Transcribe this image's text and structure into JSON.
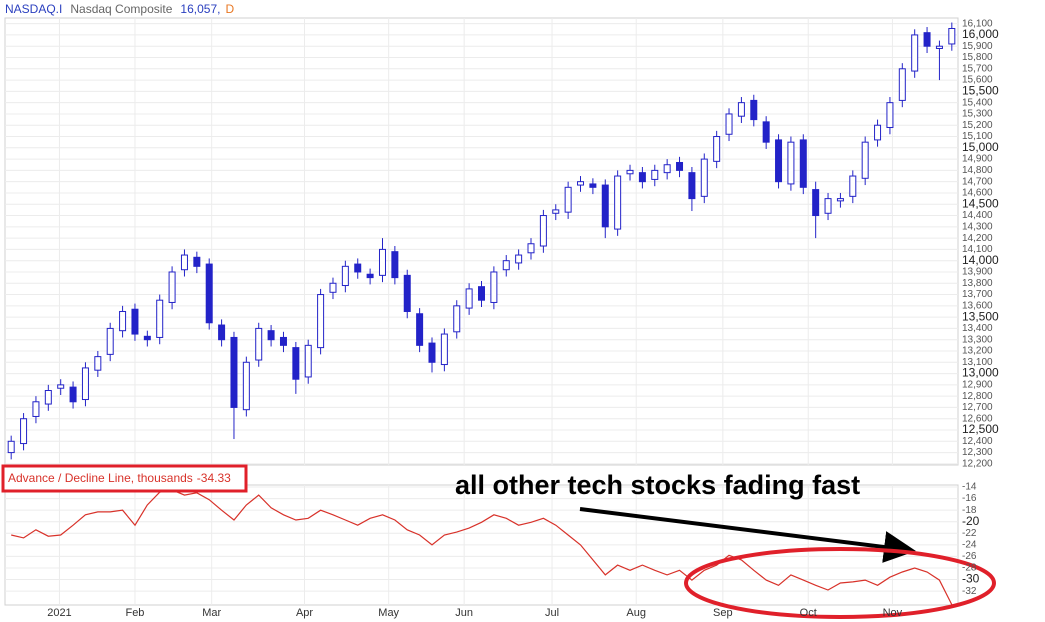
{
  "chart_data": [
    {
      "type": "candlestick",
      "title": "NASDAQ.I",
      "subtitle": "Nasdaq Composite",
      "last_label": "16,057,",
      "period": "D",
      "color": "#2323c8",
      "open": [
        12300,
        12380,
        12620,
        12730,
        12870,
        12880,
        12770,
        13030,
        13170,
        13380,
        13570,
        13330,
        13320,
        13630,
        13920,
        14030,
        13970,
        13430,
        13320,
        12680,
        13120,
        13380,
        13320,
        13230,
        12970,
        13230,
        13720,
        13780,
        13970,
        13880,
        13870,
        14080,
        13870,
        13530,
        13270,
        13080,
        13370,
        13580,
        13770,
        13630,
        13920,
        13980,
        14070,
        14130,
        14420,
        14430,
        14670,
        14680,
        14670,
        14280,
        14770,
        14780,
        14720,
        14780,
        14870,
        14780,
        14570,
        14880,
        15120,
        15280,
        15420,
        15230,
        15070,
        14680,
        15070,
        14630,
        14420,
        14530,
        14570,
        14730,
        15070,
        15180,
        15420,
        15680,
        16020,
        15880,
        15920
      ],
      "high": [
        12450,
        12650,
        12800,
        12900,
        12950,
        12930,
        13100,
        13200,
        13450,
        13600,
        13620,
        13380,
        13700,
        13950,
        14100,
        14080,
        14020,
        13480,
        13370,
        13150,
        13450,
        13430,
        13370,
        13280,
        13300,
        13750,
        13850,
        14000,
        14020,
        13930,
        14200,
        14130,
        13920,
        13580,
        13320,
        13400,
        13650,
        13800,
        13820,
        13950,
        14050,
        14100,
        14200,
        14450,
        14500,
        14700,
        14750,
        14730,
        14720,
        14800,
        14850,
        14830,
        14850,
        14900,
        14920,
        14830,
        14950,
        15150,
        15350,
        15450,
        15470,
        15280,
        15120,
        15100,
        15120,
        14700,
        14600,
        14600,
        14800,
        15100,
        15250,
        15450,
        15750,
        16050,
        16070,
        15950,
        16110
      ],
      "low": [
        12240,
        12320,
        12560,
        12670,
        12810,
        12690,
        12710,
        12970,
        13110,
        13320,
        13290,
        13240,
        13260,
        13570,
        13860,
        13890,
        13390,
        13240,
        12420,
        12620,
        13060,
        13240,
        13190,
        12820,
        12910,
        13170,
        13660,
        13720,
        13840,
        13790,
        13810,
        13790,
        13490,
        13190,
        13010,
        13020,
        13310,
        13520,
        13590,
        13570,
        13860,
        13920,
        14010,
        14070,
        14360,
        14370,
        14610,
        14590,
        14200,
        14220,
        14710,
        14640,
        14660,
        14720,
        14740,
        14440,
        14510,
        14820,
        15060,
        15220,
        15190,
        14990,
        14640,
        14620,
        14590,
        14200,
        14360,
        14470,
        14510,
        14670,
        15010,
        15120,
        15360,
        15620,
        15840,
        15600,
        15860
      ],
      "close": [
        12400,
        12600,
        12750,
        12850,
        12900,
        12750,
        13050,
        13150,
        13400,
        13550,
        13350,
        13300,
        13650,
        13900,
        14050,
        13950,
        13450,
        13300,
        12700,
        13100,
        13400,
        13300,
        13250,
        12950,
        13250,
        13700,
        13800,
        13950,
        13900,
        13850,
        14100,
        13850,
        13550,
        13250,
        13100,
        13350,
        13600,
        13750,
        13650,
        13900,
        14000,
        14050,
        14150,
        14400,
        14450,
        14650,
        14700,
        14650,
        14300,
        14750,
        14800,
        14700,
        14800,
        14850,
        14800,
        14550,
        14900,
        15100,
        15300,
        15400,
        15250,
        15050,
        14700,
        15050,
        14650,
        14400,
        14550,
        14550,
        14750,
        15050,
        15200,
        15400,
        15700,
        16000,
        15900,
        15900,
        16057
      ],
      "ylim": [
        12190,
        16150
      ],
      "yticks": [
        {
          "value": 12200,
          "label": "12,200"
        },
        {
          "value": 12300,
          "label": "12,300"
        },
        {
          "value": 12400,
          "label": "12,400"
        },
        {
          "value": 12500,
          "label": "12,500"
        },
        {
          "value": 12600,
          "label": "12,600"
        },
        {
          "value": 12700,
          "label": "12,700"
        },
        {
          "value": 12800,
          "label": "12,800"
        },
        {
          "value": 12900,
          "label": "12,900"
        },
        {
          "value": 13000,
          "label": "13,000"
        },
        {
          "value": 13100,
          "label": "13,100"
        },
        {
          "value": 13200,
          "label": "13,200"
        },
        {
          "value": 13300,
          "label": "13,300"
        },
        {
          "value": 13400,
          "label": "13,400"
        },
        {
          "value": 13500,
          "label": "13,500"
        },
        {
          "value": 13600,
          "label": "13,600"
        },
        {
          "value": 13700,
          "label": "13,700"
        },
        {
          "value": 13800,
          "label": "13,800"
        },
        {
          "value": 13900,
          "label": "13,900"
        },
        {
          "value": 14000,
          "label": "14,000"
        },
        {
          "value": 14100,
          "label": "14,100"
        },
        {
          "value": 14200,
          "label": "14,200"
        },
        {
          "value": 14300,
          "label": "14,300"
        },
        {
          "value": 14400,
          "label": "14,400"
        },
        {
          "value": 14500,
          "label": "14,500"
        },
        {
          "value": 14600,
          "label": "14,600"
        },
        {
          "value": 14700,
          "label": "14,700"
        },
        {
          "value": 14800,
          "label": "14,800"
        },
        {
          "value": 14900,
          "label": "14,900"
        },
        {
          "value": 15000,
          "label": "15,000"
        },
        {
          "value": 15100,
          "label": "15,100"
        },
        {
          "value": 15200,
          "label": "15,200"
        },
        {
          "value": 15300,
          "label": "15,300"
        },
        {
          "value": 15400,
          "label": "15,400"
        },
        {
          "value": 15500,
          "label": "15,500"
        },
        {
          "value": 15600,
          "label": "15,600"
        },
        {
          "value": 15700,
          "label": "15,700"
        },
        {
          "value": 15800,
          "label": "15,800"
        },
        {
          "value": 15900,
          "label": "15,900"
        },
        {
          "value": 16000,
          "label": "16,000"
        },
        {
          "value": 16100,
          "label": "16,100"
        }
      ],
      "xlim": [
        0,
        77
      ],
      "xticks": [
        {
          "value": 4.4,
          "label": "2021"
        },
        {
          "value": 10.5,
          "label": "Feb"
        },
        {
          "value": 16.7,
          "label": "Mar"
        },
        {
          "value": 24.2,
          "label": "Apr"
        },
        {
          "value": 31.0,
          "label": "May"
        },
        {
          "value": 37.1,
          "label": "Jun"
        },
        {
          "value": 44.2,
          "label": "Jul"
        },
        {
          "value": 51.0,
          "label": "Aug"
        },
        {
          "value": 58.0,
          "label": "Sep"
        },
        {
          "value": 64.9,
          "label": "Oct"
        },
        {
          "value": 71.7,
          "label": "Nov"
        }
      ],
      "grid": true
    },
    {
      "type": "line",
      "series": [
        {
          "name": "Advance / Decline Line, thousands",
          "color": "#d8322a",
          "values": [
            -22.3,
            -22.8,
            -21.4,
            -22.5,
            -22.3,
            -20.6,
            -18.8,
            -18.3,
            -18.3,
            -18,
            -20.6,
            -17.1,
            -14.9,
            -14.5,
            -15.4,
            -15,
            -16.2,
            -18,
            -19.7,
            -17.1,
            -15.4,
            -17.6,
            -18.8,
            -19.7,
            -19.4,
            -18,
            -18.8,
            -19.7,
            -20.6,
            -19.4,
            -18.8,
            -19.7,
            -21.4,
            -22.3,
            -24,
            -22.3,
            -21.8,
            -21.1,
            -20.1,
            -18.8,
            -19.4,
            -20.6,
            -20.1,
            -19.4,
            -20.6,
            -22.3,
            -24,
            -26.6,
            -29.2,
            -27.5,
            -28.4,
            -27.5,
            -28.4,
            -29.2,
            -28.4,
            -30.1,
            -28.4,
            -27.5,
            -25.8,
            -26.6,
            -28.4,
            -30.1,
            -31,
            -29.2,
            -30.1,
            -31,
            -31.8,
            -30.6,
            -30.4,
            -30.1,
            -31,
            -29.6,
            -28.7,
            -28,
            -28.7,
            -30.1,
            -34.33
          ]
        }
      ],
      "ylim": [
        -34.4,
        -13.65
      ],
      "yticks": [
        -14,
        -16,
        -18,
        -20,
        -22,
        -24,
        -26,
        -28,
        -30,
        -32
      ],
      "annotation": "all other tech stocks fading fast",
      "grid": true
    }
  ]
}
